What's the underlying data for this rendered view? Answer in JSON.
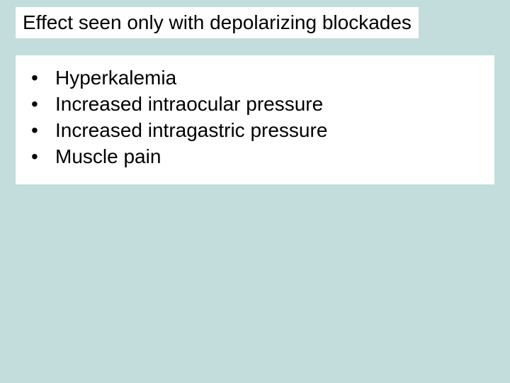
{
  "slide": {
    "background_color": "#c2dddb",
    "box_background_color": "#ffffff",
    "text_color": "#000000",
    "title": "Effect seen only with depolarizing blockades",
    "title_fontsize": 28,
    "item_fontsize": 28,
    "bullet_glyph": "•",
    "items": [
      {
        "text": "Hyperkalemia"
      },
      {
        "text": "Increased intraocular pressure"
      },
      {
        "text": "Increased intragastric pressure"
      },
      {
        "text": "Muscle pain"
      }
    ]
  }
}
